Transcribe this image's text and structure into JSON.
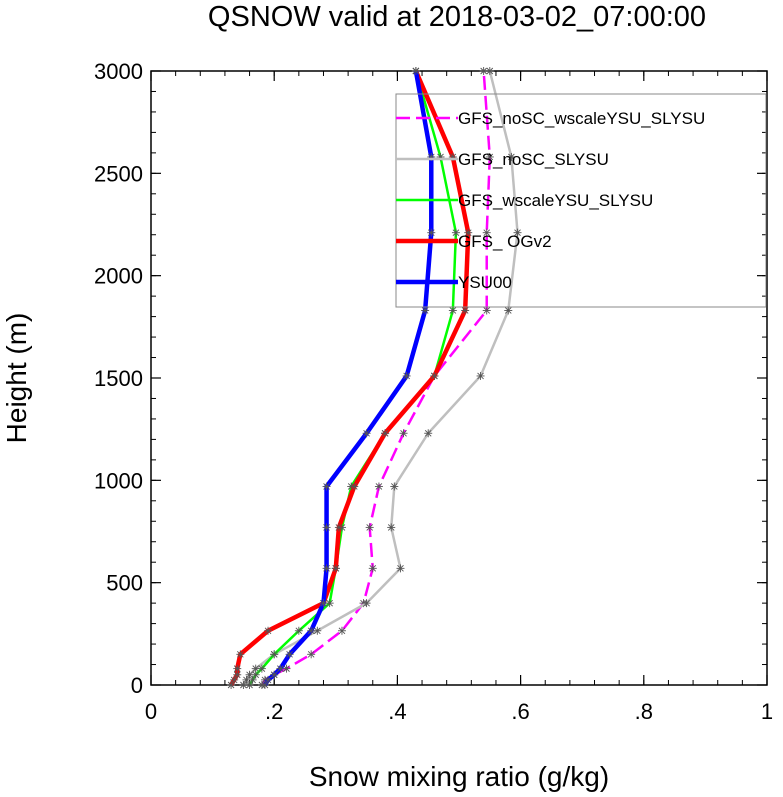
{
  "chart_data": {
    "type": "line",
    "title": "QSNOW valid at 2018-03-02_07:00:00",
    "xlabel": "Snow mixing ratio (g/kg)",
    "ylabel": "Height (m)",
    "xlim": [
      0,
      1
    ],
    "ylim": [
      0,
      3000
    ],
    "xticks": [
      0,
      0.2,
      0.4,
      0.6,
      0.8,
      1
    ],
    "xtick_labels": [
      "0",
      ".2",
      ".4",
      ".6",
      ".8",
      "1"
    ],
    "yticks": [
      0,
      500,
      1000,
      1500,
      2000,
      2500,
      3000
    ],
    "ytick_labels": [
      "0",
      "500",
      "1000",
      "1500",
      "2000",
      "2500",
      "3000"
    ],
    "grid": false,
    "legend_position": "top-right",
    "heights": [
      0,
      25,
      50,
      80,
      150,
      265,
      400,
      570,
      770,
      970,
      1230,
      1510,
      1830,
      2210,
      2580,
      3000
    ],
    "series": [
      {
        "name": "GFS_noSC_wscaleYSU_SLYSU",
        "color": "#ff00ff",
        "dash": "dash",
        "x": [
          0.18,
          0.185,
          0.2,
          0.22,
          0.26,
          0.31,
          0.345,
          0.36,
          0.355,
          0.37,
          0.41,
          0.46,
          0.545,
          0.545,
          0.55,
          0.54
        ]
      },
      {
        "name": "GFS_noSC_SLYSU",
        "color": "#bfbfbf",
        "dash": "solid",
        "x": [
          0.15,
          0.155,
          0.16,
          0.17,
          0.2,
          0.27,
          0.35,
          0.405,
          0.39,
          0.395,
          0.45,
          0.535,
          0.58,
          0.595,
          0.585,
          0.55
        ]
      },
      {
        "name": "GFS_wscaleYSU_SLYSU",
        "color": "#00ff00",
        "dash": "solid",
        "x": [
          0.16,
          0.165,
          0.17,
          0.18,
          0.2,
          0.24,
          0.29,
          0.3,
          0.31,
          0.325,
          0.38,
          0.46,
          0.49,
          0.495,
          0.47,
          0.43
        ]
      },
      {
        "name": "GFS_ OGv2",
        "color": "#ff0000",
        "dash": "solid",
        "x": [
          0.13,
          0.135,
          0.14,
          0.14,
          0.145,
          0.19,
          0.28,
          0.3,
          0.305,
          0.33,
          0.38,
          0.46,
          0.51,
          0.515,
          0.49,
          0.43
        ]
      },
      {
        "name": "YSU00",
        "color": "#0000ff",
        "dash": "solid",
        "x": [
          0.185,
          0.19,
          0.2,
          0.21,
          0.225,
          0.26,
          0.28,
          0.285,
          0.285,
          0.285,
          0.35,
          0.415,
          0.445,
          0.455,
          0.455,
          0.43
        ]
      }
    ]
  }
}
